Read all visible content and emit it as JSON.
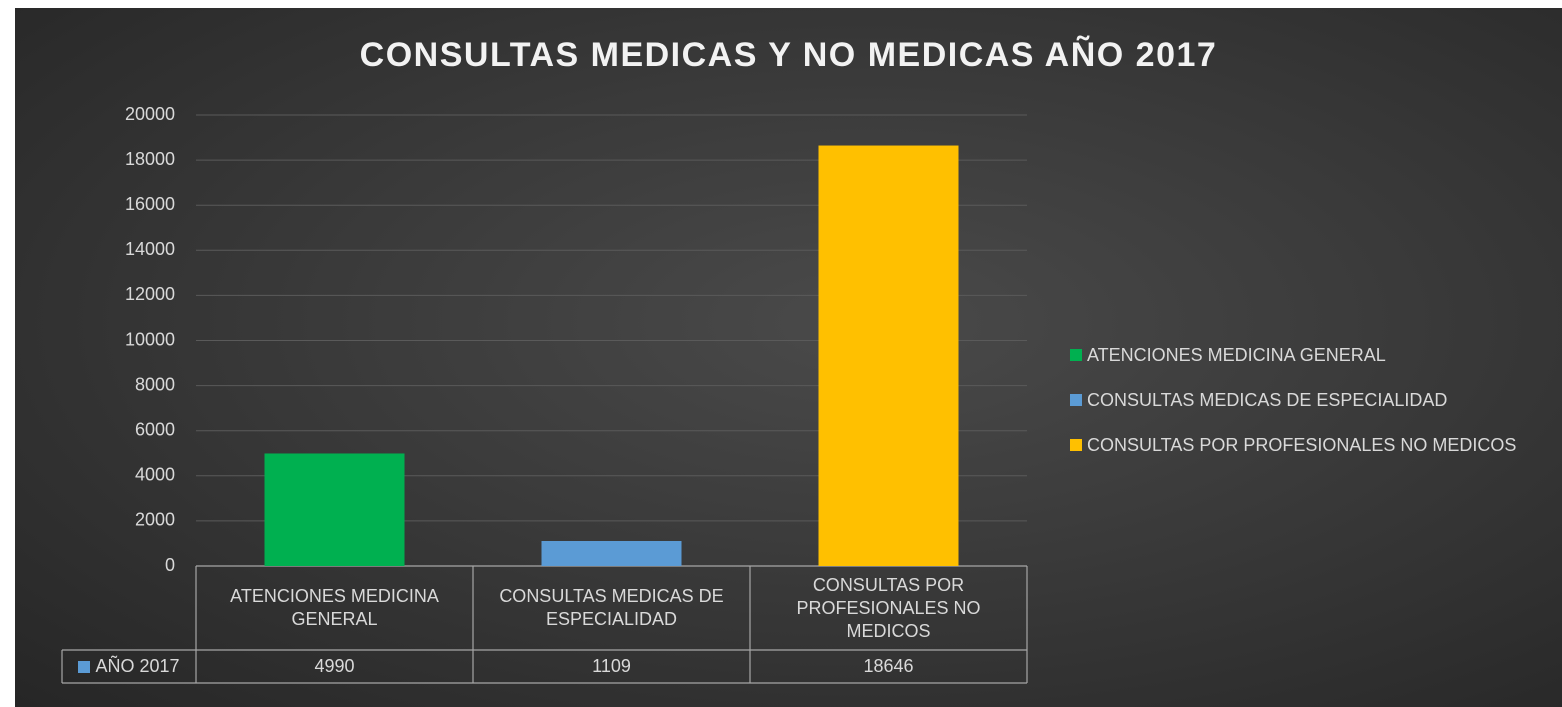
{
  "chart_data": {
    "type": "bar",
    "title": "CONSULTAS MEDICAS Y NO MEDICAS AÑO 2017",
    "categories": [
      "ATENCIONES MEDICINA GENERAL",
      "CONSULTAS MEDICAS DE ESPECIALIDAD",
      "CONSULTAS POR PROFESIONALES NO MEDICOS"
    ],
    "series": [
      {
        "name": "AÑO 2017",
        "color": "#5b9bd5",
        "values": [
          4990,
          1109,
          18646
        ]
      }
    ],
    "point_colors": [
      "#00b050",
      "#5b9bd5",
      "#ffc000"
    ],
    "ylim": [
      0,
      20000
    ],
    "yticks": [
      0,
      2000,
      4000,
      6000,
      8000,
      10000,
      12000,
      14000,
      16000,
      18000,
      20000
    ],
    "grid": true,
    "legend": "right"
  }
}
